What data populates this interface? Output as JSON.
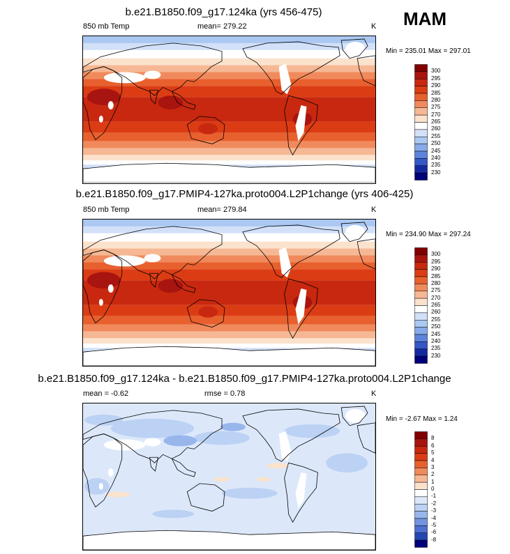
{
  "season": "MAM",
  "panels": [
    {
      "id": "p1",
      "title": "b.e21.B1850.f09_g17.124ka (yrs 456-475)",
      "left_label": "850 mb Temp",
      "center_label": "mean= 279.22",
      "right_label": "K",
      "minmax": "Min = 235.01 Max = 297.01",
      "type": "abs",
      "colorbar_labels": [
        "300",
        "295",
        "290",
        "285",
        "280",
        "275",
        "270",
        "265",
        "260",
        "255",
        "250",
        "245",
        "240",
        "235",
        "230"
      ]
    },
    {
      "id": "p2",
      "title": "b.e21.B1850.f09_g17.PMIP4-127ka.proto004.L2P1change (yrs 406-425)",
      "left_label": "850 mb Temp",
      "center_label": "mean= 279.84",
      "right_label": "K",
      "minmax": "Min = 234.90 Max = 297.24",
      "type": "abs",
      "colorbar_labels": [
        "300",
        "295",
        "290",
        "285",
        "280",
        "275",
        "270",
        "265",
        "260",
        "255",
        "250",
        "245",
        "240",
        "235",
        "230"
      ]
    },
    {
      "id": "p3",
      "title": "b.e21.B1850.f09_g17.124ka - b.e21.B1850.f09_g17.PMIP4-127ka.proto004.L2P1change",
      "left_label": "mean =  -0.62",
      "center_label": "rmse =   0.78",
      "right_label": "K",
      "minmax": "Min =  -2.67 Max =   1.24",
      "type": "diff",
      "colorbar_labels": [
        "8",
        "6",
        "5",
        "4",
        "3",
        "2",
        "1",
        "0",
        "-1",
        "-2",
        "-3",
        "-4",
        "-5",
        "-6",
        "-8"
      ]
    }
  ],
  "colors": {
    "abs_scale": [
      "#800000",
      "#a8140f",
      "#c8280f",
      "#dc3c14",
      "#e8602e",
      "#f08a5c",
      "#f6b894",
      "#fbe2cc",
      "#ffffff",
      "#d2e0f8",
      "#aac8f2",
      "#86aaea",
      "#5c84dc",
      "#3458c8",
      "#1428a0",
      "#000078"
    ],
    "diff_scale": [
      "#800000",
      "#a8140f",
      "#c8280f",
      "#dc3c14",
      "#e8602e",
      "#f08a5c",
      "#f6b894",
      "#fbe2cc",
      "#ffffff",
      "#dce8fa",
      "#bcd2f4",
      "#98b6ec",
      "#7294e0",
      "#4c70d2",
      "#2446b4",
      "#000078"
    ]
  }
}
